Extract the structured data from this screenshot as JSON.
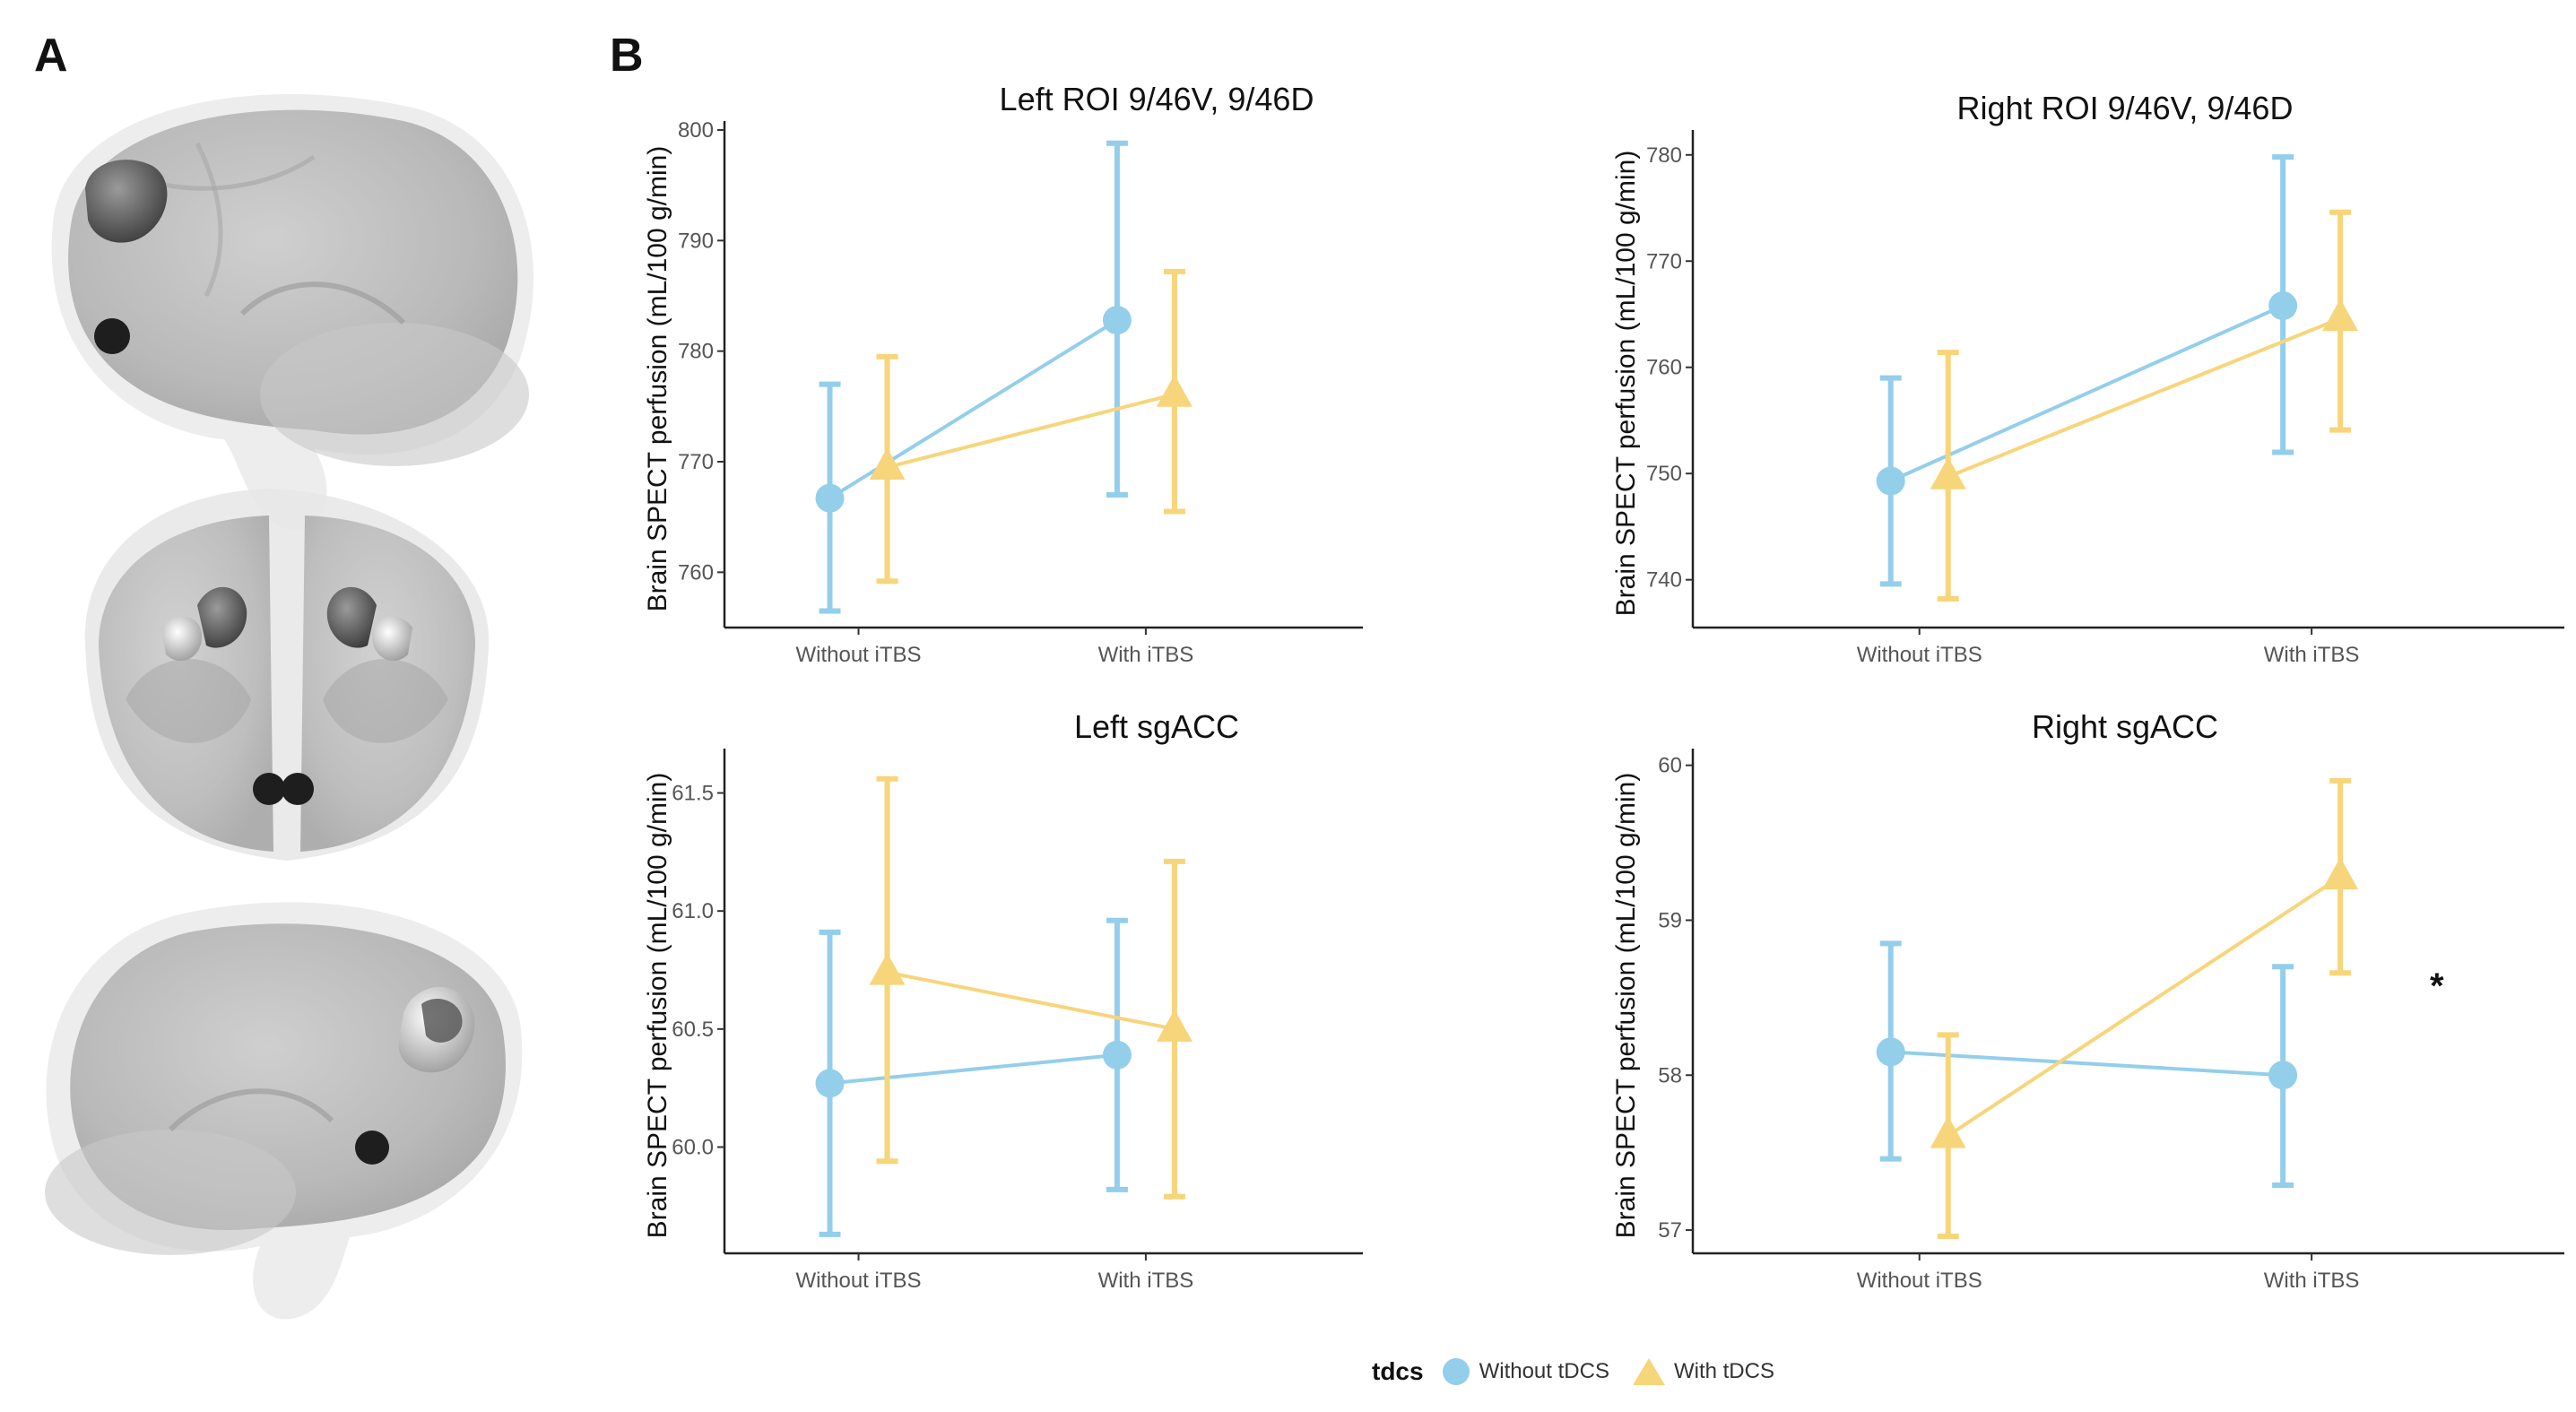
{
  "figure": {
    "panel_a_label": "A",
    "panel_b_label": "B",
    "significance_marker": "*"
  },
  "legend": {
    "title": "tdcs",
    "items": [
      {
        "label": "Without tDCS",
        "color": "#93CEEB",
        "shape": "circle"
      },
      {
        "label": "With tDCS",
        "color": "#F7D57A",
        "shape": "triangle"
      }
    ]
  },
  "chart_data": [
    {
      "type": "line",
      "title": "Left ROI 9/46V, 9/46D",
      "xlabel": "",
      "ylabel": "Brain SPECT perfusion (mL/100 g/min)",
      "categories": [
        "Without iTBS",
        "With iTBS"
      ],
      "ylim": [
        755,
        800
      ],
      "yticks": [
        760,
        770,
        780,
        790,
        800
      ],
      "ytick_labels": [
        "760",
        "770",
        "780",
        "790",
        "800"
      ],
      "series": [
        {
          "name": "Without tDCS",
          "values": [
            766.7,
            782.8
          ],
          "lower": [
            756.5,
            767.0
          ],
          "upper": [
            777.0,
            798.8
          ]
        },
        {
          "name": "With tDCS",
          "values": [
            769.5,
            776.1
          ],
          "lower": [
            759.2,
            765.5
          ],
          "upper": [
            779.5,
            787.2
          ]
        }
      ]
    },
    {
      "type": "line",
      "title": "Right ROI 9/46V, 9/46D",
      "xlabel": "",
      "ylabel": "Brain SPECT perfusion (mL/100 g/min)",
      "categories": [
        "Without iTBS",
        "With iTBS"
      ],
      "ylim": [
        735.5,
        781.5
      ],
      "yticks": [
        740,
        750,
        760,
        770,
        780
      ],
      "ytick_labels": [
        "740",
        "750",
        "760",
        "770",
        "780"
      ],
      "series": [
        {
          "name": "Without tDCS",
          "values": [
            749.3,
            765.8
          ],
          "lower": [
            739.6,
            752.0
          ],
          "upper": [
            759.0,
            779.8
          ]
        },
        {
          "name": "With tDCS",
          "values": [
            749.7,
            764.6
          ],
          "lower": [
            738.2,
            754.1
          ],
          "upper": [
            761.4,
            774.6
          ]
        }
      ]
    },
    {
      "type": "line",
      "title": "Left sgACC",
      "xlabel": "",
      "ylabel": "Brain SPECT perfusion (mL/100 g/min)",
      "categories": [
        "Without iTBS",
        "With iTBS"
      ],
      "ylim": [
        59.55,
        61.65
      ],
      "yticks": [
        60.0,
        60.5,
        61.0,
        61.5
      ],
      "ytick_labels": [
        "60.0",
        "60.5",
        "61.0",
        "61.5"
      ],
      "series": [
        {
          "name": "Without tDCS",
          "values": [
            60.27,
            60.39
          ],
          "lower": [
            59.63,
            59.82
          ],
          "upper": [
            60.91,
            60.96
          ]
        },
        {
          "name": "With tDCS",
          "values": [
            60.74,
            60.5
          ],
          "lower": [
            59.94,
            59.79
          ],
          "upper": [
            61.56,
            61.21
          ]
        }
      ]
    },
    {
      "type": "line",
      "title": "Right sgACC",
      "xlabel": "",
      "ylabel": "Brain SPECT perfusion (mL/100 g/min)",
      "categories": [
        "Without iTBS",
        "With iTBS"
      ],
      "ylim": [
        56.85,
        60.05
      ],
      "yticks": [
        57,
        58,
        59,
        60
      ],
      "ytick_labels": [
        "57",
        "58",
        "59",
        "60"
      ],
      "series": [
        {
          "name": "Without tDCS",
          "values": [
            58.15,
            58.0
          ],
          "lower": [
            57.46,
            57.29
          ],
          "upper": [
            58.85,
            58.7
          ]
        },
        {
          "name": "With tDCS",
          "values": [
            57.61,
            59.28
          ],
          "lower": [
            56.96,
            58.66
          ],
          "upper": [
            58.26,
            59.9
          ]
        }
      ],
      "annotation": "*"
    }
  ]
}
